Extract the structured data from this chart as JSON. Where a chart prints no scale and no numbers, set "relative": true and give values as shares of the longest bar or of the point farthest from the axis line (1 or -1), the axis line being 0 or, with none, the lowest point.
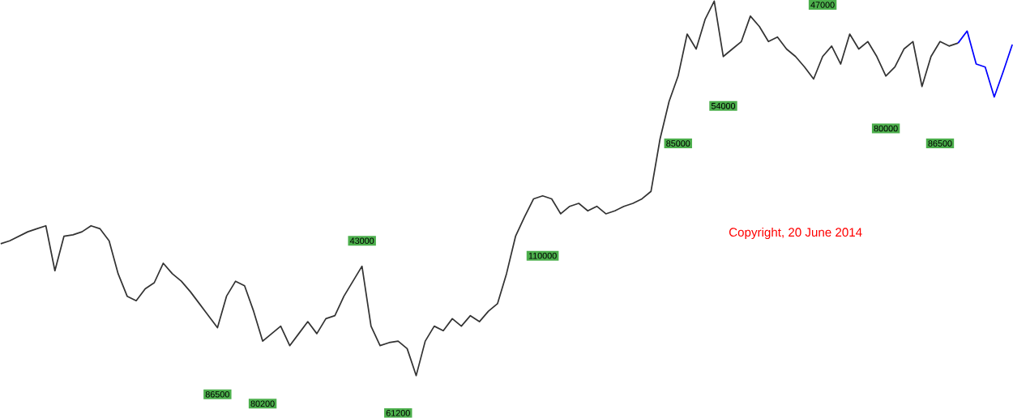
{
  "chart_data": {
    "type": "line",
    "relative": true,
    "categories": [
      null,
      null,
      null,
      null,
      null,
      null,
      null,
      null,
      null,
      null,
      null,
      null,
      null,
      null,
      null,
      null,
      null,
      null,
      null,
      null,
      null,
      null,
      null,
      null,
      null,
      null,
      null,
      null,
      null,
      null,
      null,
      null,
      null,
      null,
      null,
      null,
      null,
      null,
      null,
      null,
      null,
      null,
      null,
      null,
      null,
      null,
      null,
      null,
      null,
      null,
      null,
      null,
      null,
      null,
      null,
      null,
      null,
      null,
      null,
      null,
      null,
      null,
      null,
      null,
      null,
      null,
      null,
      null,
      null,
      null,
      null,
      null,
      null,
      null,
      null,
      null,
      null,
      null,
      null,
      null,
      null,
      null,
      null,
      null,
      null,
      null,
      null,
      null,
      null,
      null,
      null,
      null,
      null,
      null,
      null,
      null,
      null,
      null,
      null,
      null,
      null,
      null,
      null,
      null,
      null,
      null,
      null,
      null,
      null,
      null,
      null,
      null,
      null
    ],
    "series": [
      {
        "color": "#333333",
        "values": [
          0.352,
          0.36,
          0.372,
          0.384,
          0.392,
          0.4,
          0.28,
          0.372,
          0.376,
          0.384,
          0.4,
          0.392,
          0.36,
          0.272,
          0.212,
          0.2,
          0.232,
          0.248,
          0.3,
          0.272,
          0.252,
          0.224,
          0.192,
          0.16,
          0.128,
          0.212,
          0.252,
          0.24,
          0.172,
          0.092,
          0.112,
          0.132,
          0.08,
          0.112,
          0.144,
          0.112,
          0.152,
          0.16,
          0.212,
          0.252,
          0.292,
          0.132,
          0.08,
          0.088,
          0.092,
          0.072,
          0,
          0.092,
          0.132,
          0.12,
          0.152,
          0.132,
          0.16,
          0.144,
          0.172,
          0.192,
          0.272,
          0.372,
          0.424,
          0.472,
          0.48,
          0.472,
          0.432,
          0.452,
          0.46,
          0.44,
          0.452,
          0.432,
          0.44,
          0.452,
          0.46,
          0.472,
          0.492,
          0.632,
          0.732,
          0.8,
          0.912,
          0.872,
          0.952,
          1,
          0.852,
          0.872,
          0.892,
          0.96,
          0.932,
          0.892,
          0.904,
          0.872,
          0.852,
          0.824,
          0.792,
          0.852,
          0.88,
          0.832,
          0.912,
          0.872,
          0.892,
          0.852,
          0.8,
          0.824,
          0.872,
          0.892,
          0.772,
          0.852,
          0.892,
          0.88,
          0.888,
          null,
          null,
          null,
          null,
          null,
          null
        ]
      },
      {
        "color": "#0000ff",
        "values": [
          null,
          null,
          null,
          null,
          null,
          null,
          null,
          null,
          null,
          null,
          null,
          null,
          null,
          null,
          null,
          null,
          null,
          null,
          null,
          null,
          null,
          null,
          null,
          null,
          null,
          null,
          null,
          null,
          null,
          null,
          null,
          null,
          null,
          null,
          null,
          null,
          null,
          null,
          null,
          null,
          null,
          null,
          null,
          null,
          null,
          null,
          null,
          null,
          null,
          null,
          null,
          null,
          null,
          null,
          null,
          null,
          null,
          null,
          null,
          null,
          null,
          null,
          null,
          null,
          null,
          null,
          null,
          null,
          null,
          null,
          null,
          null,
          null,
          null,
          null,
          null,
          null,
          null,
          null,
          null,
          null,
          null,
          null,
          null,
          null,
          null,
          null,
          null,
          null,
          null,
          null,
          null,
          null,
          null,
          null,
          null,
          null,
          null,
          null,
          null,
          null,
          null,
          null,
          null,
          null,
          null,
          0.888,
          0.92,
          0.832,
          0.824,
          0.744,
          0.812,
          0.884
        ]
      }
    ],
    "annotations": [
      "86500",
      "80200",
      "43000",
      "61200",
      "110000",
      "85000",
      "54000",
      "Copyright, 20 June 2014",
      "47000",
      "80000",
      "86500"
    ]
  }
}
